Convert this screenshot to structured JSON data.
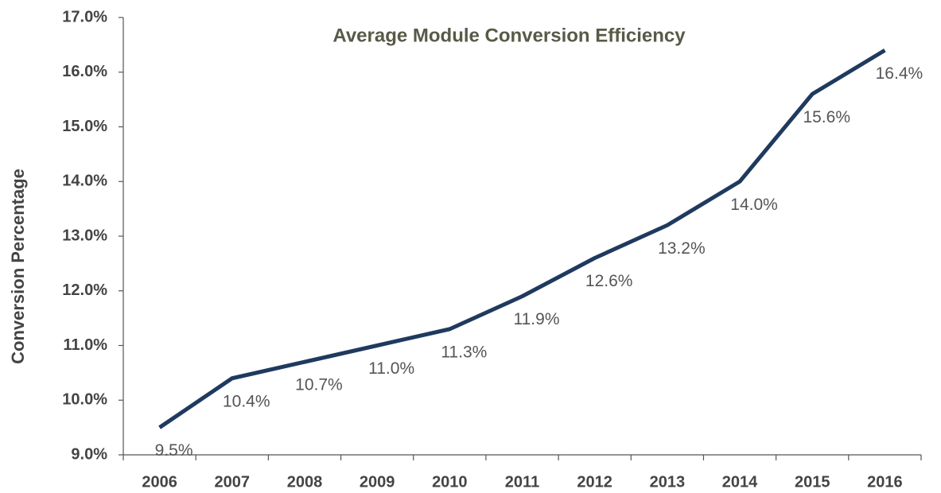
{
  "chart_data": {
    "type": "line",
    "title": "Average Module Conversion Efficiency",
    "y_label": "Conversion Percentage",
    "categories": [
      "2006",
      "2007",
      "2008",
      "2009",
      "2010",
      "2011",
      "2012",
      "2013",
      "2014",
      "2015",
      "2016"
    ],
    "values": [
      9.5,
      10.4,
      10.7,
      11.0,
      11.3,
      11.9,
      12.6,
      13.2,
      14.0,
      15.6,
      16.4
    ],
    "value_labels": [
      "9.5%",
      "10.4%",
      "10.7%",
      "11.0%",
      "11.3%",
      "11.9%",
      "12.6%",
      "13.2%",
      "14.0%",
      "15.6%",
      "16.4%"
    ],
    "color": "#1f3a5f",
    "ylim": [
      9,
      17
    ],
    "yticks": [
      {
        "value": 9,
        "label": "9.0%"
      },
      {
        "value": 10,
        "label": "10.0%"
      },
      {
        "value": 11,
        "label": "11.0%"
      },
      {
        "value": 12,
        "label": "12.0%"
      },
      {
        "value": 13,
        "label": "13.0%"
      },
      {
        "value": 14,
        "label": "14.0%"
      },
      {
        "value": 15,
        "label": "15.0%"
      },
      {
        "value": 16,
        "label": "16.0%"
      },
      {
        "value": 17,
        "label": "17.0%"
      }
    ],
    "grid": false
  }
}
